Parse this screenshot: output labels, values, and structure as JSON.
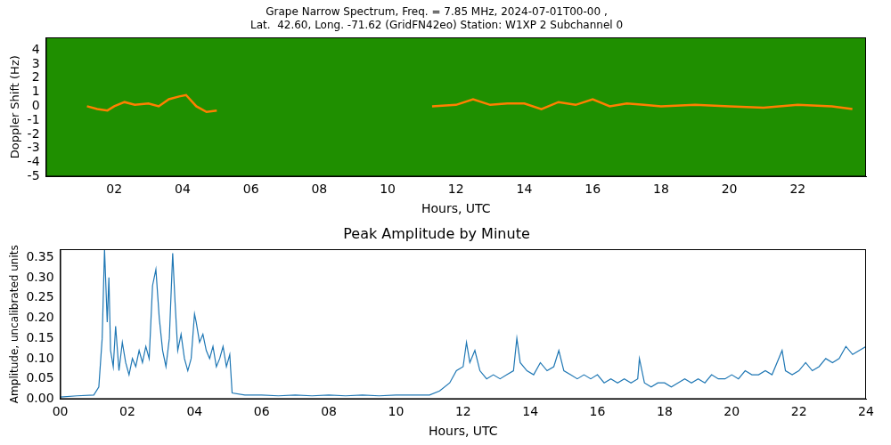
{
  "chart_data": [
    {
      "type": "line",
      "title": [
        "Grape Narrow Spectrum, Freq. = 7.85 MHz, 2024-07-01T00-00 ,",
        "Lat.  42.60, Long. -71.62 (GridFN42eo) Station: W1XP 2 Subchannel 0"
      ],
      "x_label": "Hours, UTC",
      "y_label": "Doppler Shift (Hz)",
      "x": [
        1.2,
        1.5,
        1.8,
        2.0,
        2.3,
        2.6,
        3.0,
        3.3,
        3.6,
        3.9,
        4.1,
        4.4,
        4.7,
        5.0,
        5.2,
        11.2,
        11.3,
        12,
        12.5,
        13,
        13.5,
        14,
        14.5,
        15,
        15.5,
        16,
        16.5,
        17,
        17.5,
        18,
        19,
        20,
        21,
        22,
        23,
        23.6
      ],
      "values": [
        0,
        -0.2,
        -0.3,
        0,
        0.3,
        0.1,
        0.2,
        0,
        0.5,
        0.7,
        0.8,
        0,
        -0.4,
        -0.3,
        null,
        null,
        0,
        0.1,
        0.5,
        0.1,
        0.2,
        0.2,
        -0.2,
        0.3,
        0.1,
        0.5,
        0,
        0.2,
        0.1,
        0,
        0.1,
        0,
        -0.1,
        0.1,
        0,
        -0.2
      ],
      "color": "#ff7f00",
      "xlim": [
        0,
        24
      ],
      "xticks": [
        {
          "value": 2,
          "label": "02"
        },
        {
          "value": 4,
          "label": "04"
        },
        {
          "value": 6,
          "label": "06"
        },
        {
          "value": 8,
          "label": "08"
        },
        10,
        12,
        14,
        16,
        18,
        20,
        22
      ],
      "ylim": [
        -5,
        4.9
      ],
      "yticks": [
        -5,
        -4,
        -3,
        -2,
        -1,
        0,
        1,
        2,
        3,
        4
      ],
      "grid": false
    },
    {
      "type": "line",
      "title": "Peak Amplitude by Minute",
      "x_label": "Hours, UTC",
      "y_label": "Amplitude, uncalibrated units",
      "x": [
        0,
        0.5,
        1,
        1.15,
        1.25,
        1.32,
        1.4,
        1.45,
        1.5,
        1.58,
        1.65,
        1.75,
        1.85,
        1.95,
        2.05,
        2.15,
        2.25,
        2.35,
        2.45,
        2.55,
        2.65,
        2.75,
        2.85,
        2.95,
        3.05,
        3.15,
        3.25,
        3.35,
        3.42,
        3.5,
        3.6,
        3.7,
        3.8,
        3.9,
        4.0,
        4.05,
        4.15,
        4.25,
        4.35,
        4.45,
        4.55,
        4.65,
        4.75,
        4.85,
        4.95,
        5.05,
        5.12,
        5.5,
        6,
        6.5,
        7,
        7.5,
        8,
        8.5,
        9,
        9.5,
        10,
        10.5,
        11,
        11.3,
        11.6,
        11.8,
        12,
        12.1,
        12.2,
        12.35,
        12.5,
        12.7,
        12.9,
        13.1,
        13.3,
        13.5,
        13.6,
        13.7,
        13.9,
        14.1,
        14.3,
        14.5,
        14.7,
        14.85,
        15,
        15.2,
        15.4,
        15.6,
        15.8,
        16,
        16.2,
        16.4,
        16.6,
        16.8,
        17,
        17.2,
        17.25,
        17.4,
        17.6,
        17.8,
        18,
        18.2,
        18.4,
        18.6,
        18.8,
        19,
        19.2,
        19.4,
        19.6,
        19.8,
        20,
        20.2,
        20.4,
        20.6,
        20.8,
        21,
        21.2,
        21.5,
        21.6,
        21.8,
        22,
        22.2,
        22.4,
        22.6,
        22.8,
        23,
        23.2,
        23.4,
        23.6,
        23.8,
        24
      ],
      "values": [
        0.005,
        0.008,
        0.01,
        0.03,
        0.15,
        0.37,
        0.19,
        0.3,
        0.12,
        0.08,
        0.18,
        0.07,
        0.14,
        0.09,
        0.06,
        0.1,
        0.08,
        0.12,
        0.09,
        0.13,
        0.1,
        0.28,
        0.32,
        0.2,
        0.12,
        0.08,
        0.15,
        0.36,
        0.24,
        0.12,
        0.16,
        0.1,
        0.07,
        0.1,
        0.21,
        0.19,
        0.14,
        0.16,
        0.12,
        0.1,
        0.13,
        0.08,
        0.1,
        0.13,
        0.08,
        0.11,
        0.015,
        0.01,
        0.01,
        0.008,
        0.01,
        0.008,
        0.01,
        0.008,
        0.01,
        0.008,
        0.01,
        0.01,
        0.01,
        0.02,
        0.04,
        0.07,
        0.08,
        0.14,
        0.09,
        0.12,
        0.07,
        0.05,
        0.06,
        0.05,
        0.06,
        0.07,
        0.15,
        0.09,
        0.07,
        0.06,
        0.09,
        0.07,
        0.08,
        0.12,
        0.07,
        0.06,
        0.05,
        0.06,
        0.05,
        0.06,
        0.04,
        0.05,
        0.04,
        0.05,
        0.04,
        0.05,
        0.1,
        0.04,
        0.03,
        0.04,
        0.04,
        0.03,
        0.04,
        0.05,
        0.04,
        0.05,
        0.04,
        0.06,
        0.05,
        0.05,
        0.06,
        0.05,
        0.07,
        0.06,
        0.06,
        0.07,
        0.06,
        0.12,
        0.07,
        0.06,
        0.07,
        0.09,
        0.07,
        0.08,
        0.1,
        0.09,
        0.1,
        0.13,
        0.11,
        0.12,
        0.13
      ],
      "color": "#1f77b4",
      "xlim": [
        0,
        24
      ],
      "xticks": [
        {
          "value": 0,
          "label": "00"
        },
        {
          "value": 2,
          "label": "02"
        },
        {
          "value": 4,
          "label": "04"
        },
        {
          "value": 6,
          "label": "06"
        },
        {
          "value": 8,
          "label": "08"
        },
        10,
        12,
        14,
        16,
        18,
        20,
        22,
        24
      ],
      "ylim": [
        0,
        0.37
      ],
      "yticks": [
        {
          "value": 0,
          "label": "0.00"
        },
        {
          "value": 0.05,
          "label": "0.05"
        },
        {
          "value": 0.1,
          "label": "0.10"
        },
        {
          "value": 0.15,
          "label": "0.15"
        },
        {
          "value": 0.2,
          "label": "0.20"
        },
        {
          "value": 0.25,
          "label": "0.25"
        },
        {
          "value": 0.3,
          "label": "0.30"
        },
        {
          "value": 0.35,
          "label": "0.35"
        }
      ],
      "grid": false
    }
  ]
}
